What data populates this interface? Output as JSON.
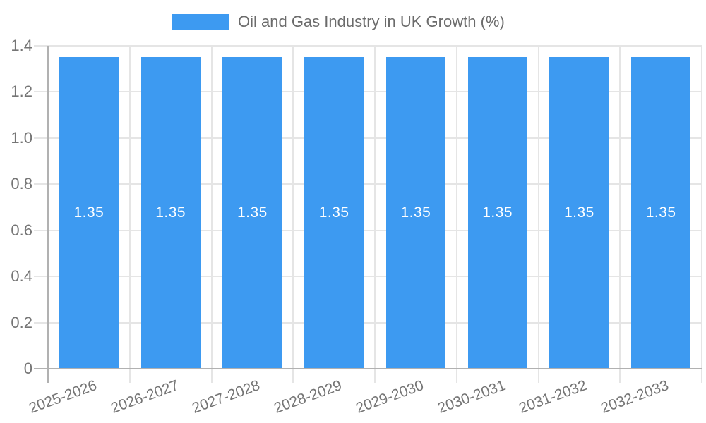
{
  "legend": {
    "label": "Oil and Gas Industry in UK Growth (%)"
  },
  "chart_data": {
    "type": "bar",
    "title": "Oil and Gas Industry in UK Growth (%)",
    "categories": [
      "2025-2026",
      "2026-2027",
      "2027-2028",
      "2028-2029",
      "2029-2030",
      "2030-2031",
      "2031-2032",
      "2032-2033"
    ],
    "values": [
      1.35,
      1.35,
      1.35,
      1.35,
      1.35,
      1.35,
      1.35,
      1.35
    ],
    "bar_labels": [
      "1.35",
      "1.35",
      "1.35",
      "1.35",
      "1.35",
      "1.35",
      "1.35",
      "1.35"
    ],
    "xlabel": "",
    "ylabel": "",
    "ylim": [
      0,
      1.4
    ],
    "yticks": [
      0,
      0.2,
      0.4,
      0.6,
      0.8,
      1.0,
      1.2,
      1.4
    ],
    "ytick_labels": [
      "0",
      "0.2",
      "0.4",
      "0.6",
      "0.8",
      "1.0",
      "1.2",
      "1.4"
    ],
    "grid": true,
    "legend_position": "top",
    "x_label_rotation_deg": -20,
    "colors": {
      "bar": "#3d9af1",
      "gridline": "#e5e5e5",
      "axis": "#b1b1b1",
      "tick_text": "#757575",
      "legend_text": "#6b6b6b",
      "bar_label_text": "#ffffff",
      "background": "#ffffff"
    }
  }
}
